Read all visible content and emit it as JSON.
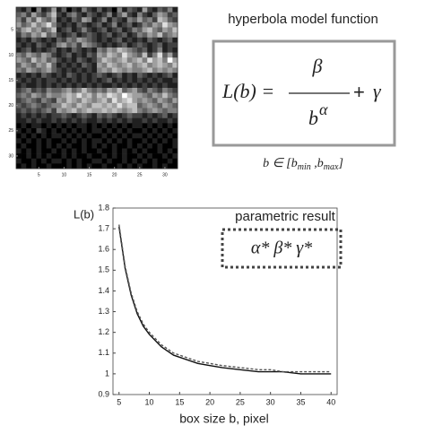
{
  "chart_data": [
    {
      "type": "heatmap",
      "xlim": [
        0.5,
        32.5
      ],
      "ylim": [
        0.5,
        32.5
      ],
      "xticks": [
        5,
        10,
        15,
        20,
        25,
        30
      ],
      "yticks": [
        5,
        10,
        15,
        20,
        25,
        30
      ],
      "colormap": [
        "#000000",
        "#ffffff"
      ],
      "z": [
        [
          3,
          2,
          4,
          1,
          5,
          2,
          3,
          6,
          2,
          4,
          1,
          3,
          2,
          5,
          3,
          2,
          4,
          2,
          3,
          1,
          5,
          2,
          4,
          3,
          2,
          6,
          3,
          2,
          4,
          3,
          5,
          2
        ],
        [
          4,
          5,
          3,
          6,
          4,
          3,
          5,
          7,
          3,
          2,
          4,
          5,
          3,
          2,
          4,
          3,
          2,
          3,
          5,
          2,
          4,
          6,
          3,
          2,
          5,
          3,
          2,
          4,
          6,
          5,
          3,
          4
        ],
        [
          5,
          3,
          6,
          4,
          7,
          5,
          4,
          6,
          2,
          3,
          2,
          4,
          3,
          6,
          5,
          2,
          3,
          5,
          2,
          4,
          3,
          2,
          5,
          4,
          6,
          4,
          5,
          3,
          7,
          6,
          4,
          3
        ],
        [
          6,
          4,
          5,
          7,
          5,
          6,
          8,
          5,
          3,
          2,
          3,
          2,
          4,
          3,
          2,
          3,
          4,
          2,
          3,
          5,
          2,
          3,
          4,
          2,
          3,
          5,
          4,
          6,
          5,
          8,
          6,
          5
        ],
        [
          4,
          6,
          7,
          5,
          6,
          4,
          5,
          7,
          2,
          3,
          4,
          2,
          3,
          5,
          3,
          2,
          3,
          4,
          2,
          3,
          4,
          2,
          3,
          5,
          4,
          6,
          7,
          5,
          4,
          6,
          5,
          7
        ],
        [
          3,
          5,
          4,
          6,
          5,
          7,
          4,
          5,
          3,
          2,
          3,
          4,
          2,
          3,
          4,
          3,
          2,
          3,
          4,
          2,
          3,
          4,
          2,
          3,
          5,
          4,
          6,
          5,
          7,
          4,
          5,
          6
        ],
        [
          2,
          3,
          2,
          4,
          3,
          2,
          3,
          2,
          4,
          3,
          5,
          4,
          6,
          5,
          4,
          3,
          2,
          3,
          2,
          3,
          4,
          2,
          3,
          2,
          3,
          2,
          4,
          3,
          2,
          3,
          4,
          2
        ],
        [
          3,
          2,
          3,
          2,
          4,
          3,
          2,
          3,
          5,
          6,
          4,
          5,
          3,
          6,
          5,
          4,
          3,
          2,
          3,
          2,
          3,
          4,
          2,
          3,
          4,
          3,
          2,
          3,
          4,
          2,
          3,
          3
        ],
        [
          2,
          3,
          4,
          2,
          3,
          2,
          3,
          4,
          2,
          3,
          2,
          4,
          3,
          2,
          3,
          2,
          5,
          4,
          6,
          5,
          7,
          6,
          5,
          4,
          3,
          4,
          2,
          3,
          5,
          2,
          3,
          2
        ],
        [
          5,
          4,
          6,
          5,
          4,
          6,
          5,
          3,
          2,
          3,
          4,
          2,
          3,
          2,
          4,
          3,
          6,
          5,
          7,
          6,
          5,
          8,
          6,
          5,
          4,
          7,
          3,
          5,
          8,
          4,
          6,
          3
        ],
        [
          6,
          5,
          4,
          7,
          5,
          6,
          4,
          5,
          3,
          2,
          3,
          2,
          4,
          3,
          2,
          3,
          5,
          7,
          6,
          5,
          6,
          7,
          5,
          6,
          7,
          5,
          8,
          6,
          7,
          5,
          9,
          6
        ],
        [
          4,
          6,
          5,
          4,
          6,
          5,
          7,
          4,
          2,
          3,
          2,
          3,
          2,
          4,
          3,
          2,
          6,
          5,
          7,
          6,
          5,
          6,
          7,
          5,
          6,
          7,
          5,
          6,
          7,
          6,
          5,
          7
        ],
        [
          5,
          4,
          6,
          5,
          4,
          5,
          6,
          4,
          3,
          2,
          3,
          2,
          3,
          2,
          3,
          2,
          5,
          6,
          5,
          7,
          6,
          5,
          6,
          5,
          5,
          6,
          7,
          5,
          6,
          5,
          6,
          5
        ],
        [
          2,
          3,
          2,
          3,
          2,
          4,
          3,
          2,
          3,
          2,
          4,
          3,
          2,
          3,
          2,
          3,
          4,
          3,
          2,
          3,
          4,
          2,
          3,
          2,
          4,
          3,
          2,
          3,
          2,
          3,
          4,
          2
        ],
        [
          3,
          2,
          3,
          2,
          3,
          2,
          3,
          3,
          2,
          3,
          2,
          3,
          2,
          3,
          2,
          3,
          2,
          3,
          4,
          2,
          3,
          2,
          3,
          2,
          3,
          2,
          3,
          2,
          3,
          2,
          2,
          3
        ],
        [
          2,
          3,
          2,
          2,
          3,
          2,
          3,
          2,
          3,
          2,
          3,
          2,
          3,
          2,
          3,
          2,
          3,
          2,
          2,
          3,
          2,
          3,
          2,
          3,
          2,
          3,
          2,
          3,
          2,
          3,
          2,
          2
        ],
        [
          3,
          4,
          5,
          3,
          4,
          3,
          5,
          4,
          4,
          5,
          6,
          4,
          5,
          7,
          5,
          4,
          5,
          4,
          6,
          5,
          7,
          4,
          5,
          6,
          4,
          3,
          5,
          4,
          3,
          5,
          4,
          3
        ],
        [
          4,
          5,
          4,
          6,
          5,
          4,
          6,
          5,
          5,
          6,
          7,
          6,
          8,
          6,
          7,
          5,
          7,
          6,
          8,
          7,
          6,
          9,
          7,
          6,
          6,
          5,
          4,
          6,
          5,
          7,
          5,
          4
        ],
        [
          3,
          4,
          5,
          4,
          3,
          5,
          4,
          3,
          6,
          5,
          7,
          6,
          5,
          7,
          6,
          5,
          6,
          7,
          5,
          8,
          6,
          7,
          8,
          6,
          5,
          6,
          5,
          4,
          6,
          5,
          4,
          6
        ],
        [
          4,
          3,
          4,
          5,
          4,
          3,
          4,
          5,
          5,
          7,
          6,
          5,
          7,
          6,
          5,
          7,
          7,
          6,
          7,
          6,
          8,
          6,
          7,
          7,
          4,
          5,
          6,
          5,
          4,
          6,
          5,
          4
        ],
        [
          3,
          4,
          3,
          4,
          3,
          4,
          5,
          3,
          6,
          5,
          6,
          7,
          5,
          6,
          7,
          6,
          6,
          7,
          6,
          7,
          6,
          5,
          6,
          7,
          5,
          4,
          5,
          6,
          5,
          4,
          5,
          5
        ],
        [
          2,
          3,
          2,
          3,
          2,
          3,
          2,
          3,
          3,
          4,
          3,
          2,
          3,
          4,
          3,
          2,
          4,
          3,
          4,
          3,
          2,
          3,
          4,
          3,
          3,
          2,
          3,
          2,
          3,
          4,
          2,
          3
        ],
        [
          2,
          2,
          3,
          2,
          3,
          2,
          2,
          3,
          2,
          3,
          2,
          3,
          2,
          3,
          2,
          2,
          3,
          2,
          3,
          2,
          3,
          2,
          3,
          2,
          2,
          3,
          2,
          3,
          2,
          2,
          3,
          2
        ],
        [
          1,
          2,
          1,
          2,
          2,
          1,
          2,
          1,
          2,
          1,
          2,
          1,
          2,
          2,
          1,
          2,
          1,
          2,
          1,
          2,
          1,
          2,
          1,
          2,
          2,
          1,
          2,
          1,
          2,
          1,
          2,
          1
        ],
        [
          2,
          1,
          2,
          1,
          3,
          2,
          1,
          2,
          1,
          2,
          1,
          2,
          1,
          2,
          1,
          2,
          2,
          1,
          2,
          1,
          2,
          1,
          2,
          1,
          1,
          2,
          1,
          2,
          1,
          2,
          1,
          2
        ],
        [
          1,
          2,
          1,
          2,
          1,
          2,
          1,
          2,
          2,
          1,
          2,
          1,
          2,
          1,
          2,
          1,
          1,
          2,
          1,
          2,
          1,
          2,
          1,
          2,
          2,
          1,
          2,
          1,
          2,
          1,
          2,
          1
        ],
        [
          2,
          1,
          2,
          1,
          2,
          1,
          2,
          1,
          1,
          2,
          1,
          2,
          1,
          2,
          1,
          2,
          2,
          1,
          2,
          1,
          2,
          1,
          2,
          1,
          1,
          2,
          1,
          2,
          1,
          2,
          1,
          2
        ],
        [
          1,
          2,
          1,
          1,
          2,
          1,
          2,
          1,
          2,
          1,
          2,
          1,
          1,
          2,
          1,
          2,
          1,
          2,
          1,
          2,
          1,
          1,
          2,
          1,
          2,
          1,
          2,
          1,
          2,
          1,
          1,
          2
        ],
        [
          2,
          1,
          2,
          1,
          2,
          1,
          1,
          2,
          1,
          2,
          1,
          2,
          1,
          2,
          1,
          1,
          2,
          1,
          1,
          2,
          1,
          2,
          1,
          2,
          1,
          2,
          1,
          1,
          2,
          1,
          2,
          1
        ],
        [
          1,
          1,
          2,
          1,
          2,
          1,
          2,
          1,
          1,
          2,
          1,
          2,
          1,
          1,
          2,
          1,
          1,
          2,
          1,
          2,
          1,
          2,
          1,
          1,
          2,
          1,
          2,
          1,
          1,
          2,
          1,
          2
        ],
        [
          2,
          1,
          1,
          2,
          1,
          2,
          1,
          2,
          2,
          1,
          2,
          1,
          2,
          1,
          1,
          2,
          2,
          1,
          2,
          1,
          1,
          2,
          1,
          2,
          1,
          2,
          1,
          2,
          1,
          1,
          2,
          1
        ],
        [
          1,
          2,
          1,
          2,
          1,
          1,
          2,
          1,
          1,
          1,
          2,
          1,
          2,
          1,
          2,
          1,
          1,
          2,
          1,
          1,
          2,
          1,
          2,
          1,
          2,
          1,
          1,
          2,
          1,
          2,
          1,
          1
        ]
      ]
    },
    {
      "type": "line",
      "x_label": "box size b, pixel",
      "y_label": "L(b)",
      "x": [
        5,
        6,
        7,
        8,
        9,
        10,
        12,
        14,
        16,
        18,
        20,
        22,
        25,
        28,
        30,
        32,
        35,
        38,
        40
      ],
      "series": [
        {
          "color": "#111111",
          "dash": false,
          "values": [
            1.71,
            1.51,
            1.38,
            1.29,
            1.23,
            1.19,
            1.13,
            1.09,
            1.07,
            1.05,
            1.04,
            1.03,
            1.02,
            1.01,
            1.01,
            1.01,
            1.0,
            1.0,
            1.0
          ]
        },
        {
          "color": "#555555",
          "dash": true,
          "values": [
            1.72,
            1.52,
            1.39,
            1.3,
            1.24,
            1.2,
            1.14,
            1.1,
            1.08,
            1.06,
            1.05,
            1.04,
            1.03,
            1.02,
            1.02,
            1.01,
            1.01,
            1.01,
            1.01
          ]
        }
      ],
      "xlim": [
        4,
        41
      ],
      "ylim": [
        0.9,
        1.8
      ],
      "xticks": [
        5,
        10,
        15,
        20,
        25,
        30,
        35,
        40
      ],
      "yticks": [
        0.9,
        1,
        1.1,
        1.2,
        1.3,
        1.4,
        1.5,
        1.6,
        1.7,
        1.8
      ]
    }
  ],
  "formula": {
    "title": "hyperbola model function",
    "lhs": "L(b) =",
    "numerator": "β",
    "base": "b",
    "exponent": "α",
    "plus": "+",
    "constant": "γ",
    "domain": {
      "var": "b ∈ [b",
      "min_sub": "min",
      "sep": " ,b",
      "max_sub": "max",
      "close": "]"
    }
  },
  "result": {
    "title": "parametric result",
    "params": "α*  β*  γ*"
  }
}
